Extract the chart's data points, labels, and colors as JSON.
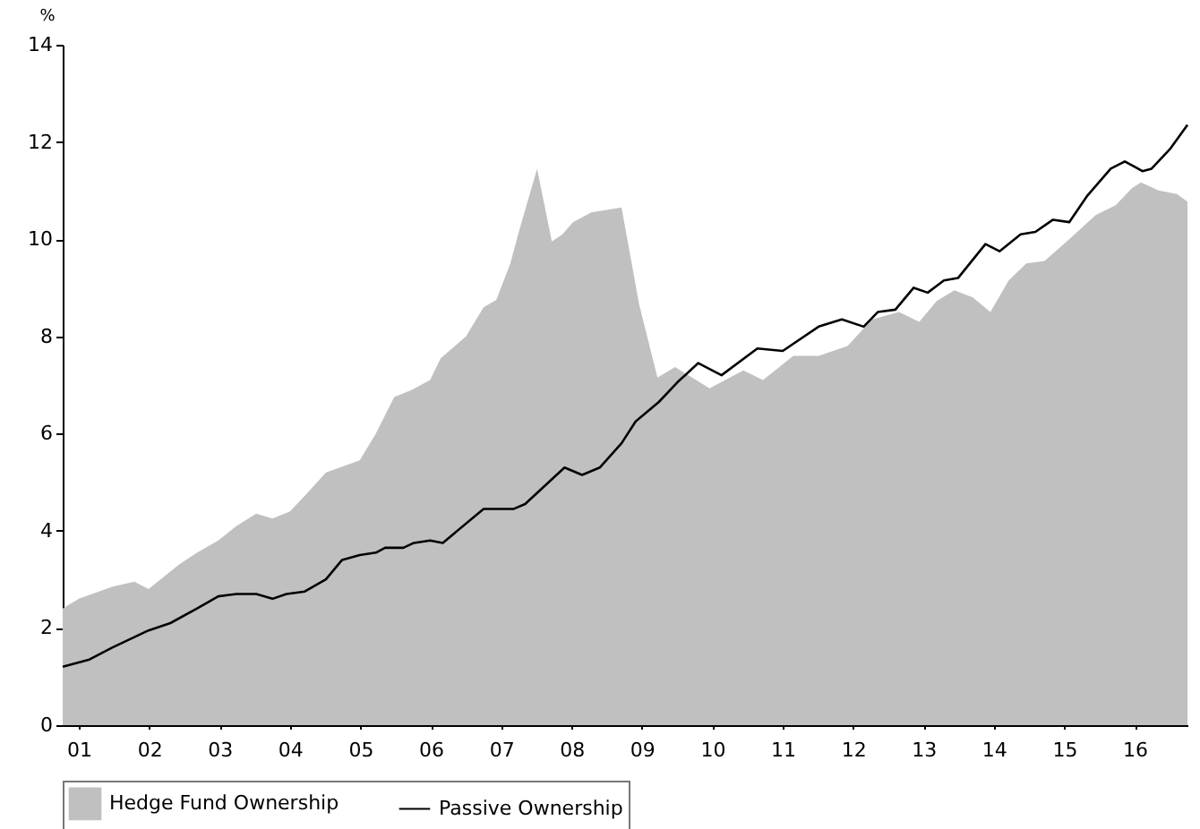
{
  "chart_data": {
    "type": "area",
    "ylabel": "%",
    "xlim": [
      2000.77,
      2016.75
    ],
    "xticks": [
      {
        "value": 2001,
        "label": "01"
      },
      {
        "value": 2002,
        "label": "02"
      },
      {
        "value": 2003,
        "label": "03"
      },
      {
        "value": 2004,
        "label": "04"
      },
      {
        "value": 2005,
        "label": "05"
      },
      {
        "value": 2006,
        "label": "06"
      },
      {
        "value": 2007,
        "label": "07"
      },
      {
        "value": 2008,
        "label": "08"
      },
      {
        "value": 2009,
        "label": "09"
      },
      {
        "value": 2010,
        "label": "10"
      },
      {
        "value": 2011,
        "label": "11"
      },
      {
        "value": 2012,
        "label": "12"
      },
      {
        "value": 2013,
        "label": "13"
      },
      {
        "value": 2014,
        "label": "14"
      },
      {
        "value": 2015,
        "label": "15"
      },
      {
        "value": 2016,
        "label": "16"
      }
    ],
    "ylim": [
      0,
      14
    ],
    "yticks": [
      0,
      2,
      4,
      6,
      8,
      10,
      12,
      14
    ],
    "grid": false,
    "legend": "bottom",
    "series": [
      {
        "name": "Hedge Fund Ownership",
        "type": "area",
        "color": "#c0c0c0",
        "x": [
          2000.77,
          2001.0,
          2001.48,
          2001.79,
          2001.99,
          2002.42,
          2002.68,
          2002.98,
          2003.24,
          2003.52,
          2003.75,
          2004.0,
          2004.26,
          2004.51,
          2004.99,
          2005.22,
          2005.48,
          2005.73,
          2005.99,
          2006.14,
          2006.5,
          2006.75,
          2006.93,
          2007.13,
          2007.26,
          2007.51,
          2007.72,
          2007.87,
          2008.02,
          2008.28,
          2008.71,
          2008.96,
          2009.22,
          2009.47,
          2009.96,
          2010.44,
          2010.72,
          2011.15,
          2011.51,
          2011.92,
          2012.27,
          2012.65,
          2012.94,
          2013.19,
          2013.44,
          2013.7,
          2013.95,
          2014.21,
          2014.46,
          2014.72,
          2015.07,
          2015.45,
          2015.73,
          2015.96,
          2016.09,
          2016.34,
          2016.6,
          2016.75
        ],
        "values": [
          2.4,
          2.6,
          2.85,
          2.95,
          2.8,
          3.3,
          3.55,
          3.8,
          4.1,
          4.35,
          4.25,
          4.4,
          4.8,
          5.2,
          5.45,
          6.0,
          6.75,
          6.9,
          7.1,
          7.55,
          8.0,
          8.6,
          8.75,
          9.5,
          10.2,
          11.45,
          9.95,
          10.1,
          10.35,
          10.55,
          10.65,
          8.66,
          7.15,
          7.37,
          6.93,
          7.3,
          7.1,
          7.6,
          7.6,
          7.8,
          8.35,
          8.5,
          8.3,
          8.73,
          8.95,
          8.8,
          8.5,
          9.15,
          9.5,
          9.55,
          10.0,
          10.5,
          10.7,
          11.05,
          11.17,
          11.0,
          10.93,
          10.77
        ]
      },
      {
        "name": "Passive Ownership",
        "type": "line",
        "color": "#000000",
        "x": [
          2000.77,
          2001.15,
          2001.48,
          2001.99,
          2002.3,
          2002.68,
          2002.98,
          2003.24,
          2003.52,
          2003.75,
          2003.95,
          2004.21,
          2004.51,
          2004.74,
          2004.99,
          2005.22,
          2005.35,
          2005.61,
          2005.76,
          2005.99,
          2006.17,
          2006.75,
          2007.18,
          2007.34,
          2007.9,
          2008.15,
          2008.4,
          2008.71,
          2008.91,
          2009.24,
          2009.5,
          2009.8,
          2010.13,
          2010.64,
          2011.0,
          2011.51,
          2011.84,
          2012.15,
          2012.35,
          2012.6,
          2012.86,
          2013.06,
          2013.29,
          2013.49,
          2013.88,
          2014.08,
          2014.38,
          2014.59,
          2014.84,
          2015.07,
          2015.33,
          2015.66,
          2015.86,
          2016.11,
          2016.24,
          2016.5,
          2016.75
        ],
        "values": [
          1.2,
          1.35,
          1.6,
          1.95,
          2.1,
          2.4,
          2.65,
          2.7,
          2.7,
          2.6,
          2.7,
          2.75,
          3.0,
          3.4,
          3.5,
          3.55,
          3.65,
          3.65,
          3.75,
          3.8,
          3.75,
          4.45,
          4.45,
          4.55,
          5.3,
          5.15,
          5.3,
          5.8,
          6.25,
          6.65,
          7.05,
          7.45,
          7.2,
          7.75,
          7.7,
          8.2,
          8.35,
          8.2,
          8.5,
          8.55,
          9.0,
          8.9,
          9.15,
          9.2,
          9.9,
          9.75,
          10.1,
          10.15,
          10.4,
          10.35,
          10.9,
          11.45,
          11.6,
          11.4,
          11.45,
          11.85,
          12.35
        ]
      }
    ]
  }
}
